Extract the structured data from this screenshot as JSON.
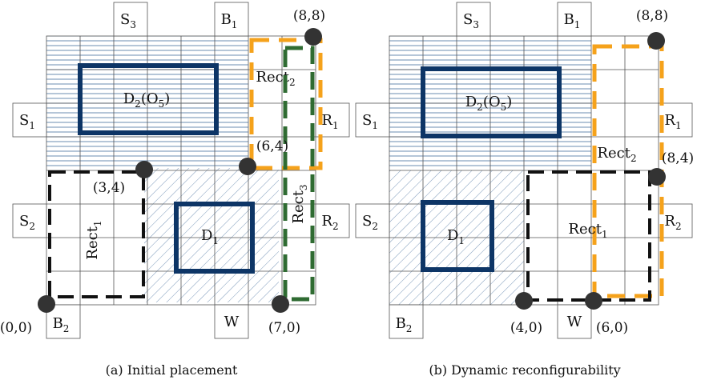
{
  "figure": {
    "left_panel": {
      "caption": "(a) Initial placement",
      "ports": {
        "S3": {
          "base": "S",
          "sub": "3"
        },
        "B1": {
          "base": "B",
          "sub": "1"
        },
        "S1": {
          "base": "S",
          "sub": "1"
        },
        "R1": {
          "base": "R",
          "sub": "1"
        },
        "S2": {
          "base": "S",
          "sub": "2"
        },
        "R2": {
          "base": "R",
          "sub": "2"
        },
        "B2": {
          "base": "B",
          "sub": "2"
        },
        "W": {
          "base": "W",
          "sub": ""
        }
      },
      "modules": {
        "D2": {
          "base": "D",
          "sub": "2",
          "tail": "(O",
          "tail_sub": "5",
          "end": ")"
        },
        "D1": {
          "base": "D",
          "sub": "1"
        }
      },
      "rects": {
        "Rect1": {
          "base": "Rect",
          "sub": "1"
        },
        "Rect2": {
          "base": "Rect",
          "sub": "2"
        },
        "Rect3": {
          "base": "Rect",
          "sub": "3"
        }
      },
      "points": {
        "p00": "(0,0)",
        "p34": "(3,4)",
        "p64": "(6,4)",
        "p88": "(8,8)",
        "p70": "(7,0)"
      }
    },
    "right_panel": {
      "caption": "(b) Dynamic reconfigurability",
      "ports": {
        "S3": {
          "base": "S",
          "sub": "3"
        },
        "B1": {
          "base": "B",
          "sub": "1"
        },
        "S1": {
          "base": "S",
          "sub": "1"
        },
        "R1": {
          "base": "R",
          "sub": "1"
        },
        "S2": {
          "base": "S",
          "sub": "2"
        },
        "R2": {
          "base": "R",
          "sub": "2"
        },
        "B2": {
          "base": "B",
          "sub": "2"
        },
        "W": {
          "base": "W",
          "sub": ""
        }
      },
      "modules": {
        "D2": {
          "base": "D",
          "sub": "2",
          "tail": "(O",
          "tail_sub": "5",
          "end": ")"
        },
        "D1": {
          "base": "D",
          "sub": "1"
        }
      },
      "rects": {
        "Rect1": {
          "base": "Rect",
          "sub": "1"
        },
        "Rect2": {
          "base": "Rect",
          "sub": "2"
        }
      },
      "points": {
        "p88": "(8,8)",
        "p84": "(8,4)",
        "p40": "(4,0)",
        "p60": "(6,0)"
      }
    },
    "colors": {
      "grid": "#555555",
      "hlines": "#5a7fa8",
      "hatch": "#5a7fa8",
      "module": "#0d3566",
      "orange": "#f5a21b",
      "green": "#2f6b32",
      "black": "#111111",
      "dot": "#333333"
    }
  }
}
